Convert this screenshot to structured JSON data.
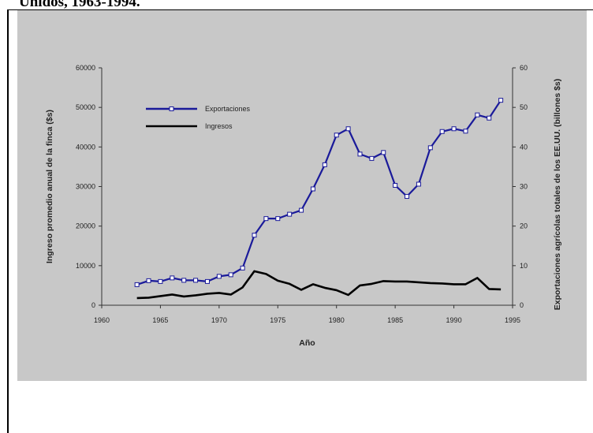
{
  "header": {
    "text": "Unidos, 1963-1994."
  },
  "chart_data": {
    "type": "line",
    "title": "",
    "xlabel": "Año",
    "ylabel_left": "Ingreso promedio anual de la finca ($s)",
    "ylabel_right": "Exportaciones agrícolas totales de los EE.UU. (billones $s)",
    "xlim": [
      1960,
      1995
    ],
    "ylim_left": [
      0,
      60000
    ],
    "ylim_right": [
      0,
      60
    ],
    "x_ticks": [
      "1960",
      "1965",
      "1970",
      "1975",
      "1980",
      "1985",
      "1990",
      "1995"
    ],
    "y_ticks_left": [
      "0",
      "10000",
      "20000",
      "30000",
      "40000",
      "50000",
      "60000"
    ],
    "y_ticks_right": [
      "0",
      "10",
      "20",
      "30",
      "40",
      "50",
      "60"
    ],
    "legend_position": "top-left",
    "grid": false,
    "series": [
      {
        "name": "Exportaciones",
        "axis": "right",
        "color": "#1a1a9a",
        "marker": "square",
        "x": [
          1963,
          1964,
          1965,
          1966,
          1967,
          1968,
          1969,
          1970,
          1971,
          1972,
          1973,
          1974,
          1975,
          1976,
          1977,
          1978,
          1979,
          1980,
          1981,
          1982,
          1983,
          1984,
          1985,
          1986,
          1987,
          1988,
          1989,
          1990,
          1991,
          1992,
          1993,
          1994
        ],
        "values": [
          5.2,
          6.2,
          6.0,
          6.9,
          6.3,
          6.3,
          6.0,
          7.3,
          7.7,
          9.4,
          17.7,
          21.9,
          21.9,
          23.0,
          24.0,
          29.4,
          35.5,
          43.0,
          44.6,
          38.2,
          37.1,
          38.6,
          30.3,
          27.5,
          30.6,
          39.8,
          43.9,
          44.6,
          44.0,
          48.1,
          47.3,
          51.8
        ]
      },
      {
        "name": "Ingresos",
        "axis": "left",
        "color": "#000000",
        "marker": "none",
        "x": [
          1963,
          1964,
          1965,
          1966,
          1967,
          1968,
          1969,
          1970,
          1971,
          1972,
          1973,
          1974,
          1975,
          1976,
          1977,
          1978,
          1979,
          1980,
          1981,
          1982,
          1983,
          1984,
          1985,
          1986,
          1987,
          1988,
          1989,
          1990,
          1991,
          1992,
          1993,
          1994
        ],
        "values": [
          1800,
          1900,
          2300,
          2700,
          2200,
          2500,
          2900,
          3100,
          2700,
          4500,
          8600,
          7900,
          6200,
          5400,
          3900,
          5300,
          4400,
          3800,
          2600,
          5000,
          5400,
          6100,
          6000,
          6000,
          5800,
          5600,
          5500,
          5300,
          5300,
          6900,
          4100,
          4000
        ]
      }
    ]
  }
}
